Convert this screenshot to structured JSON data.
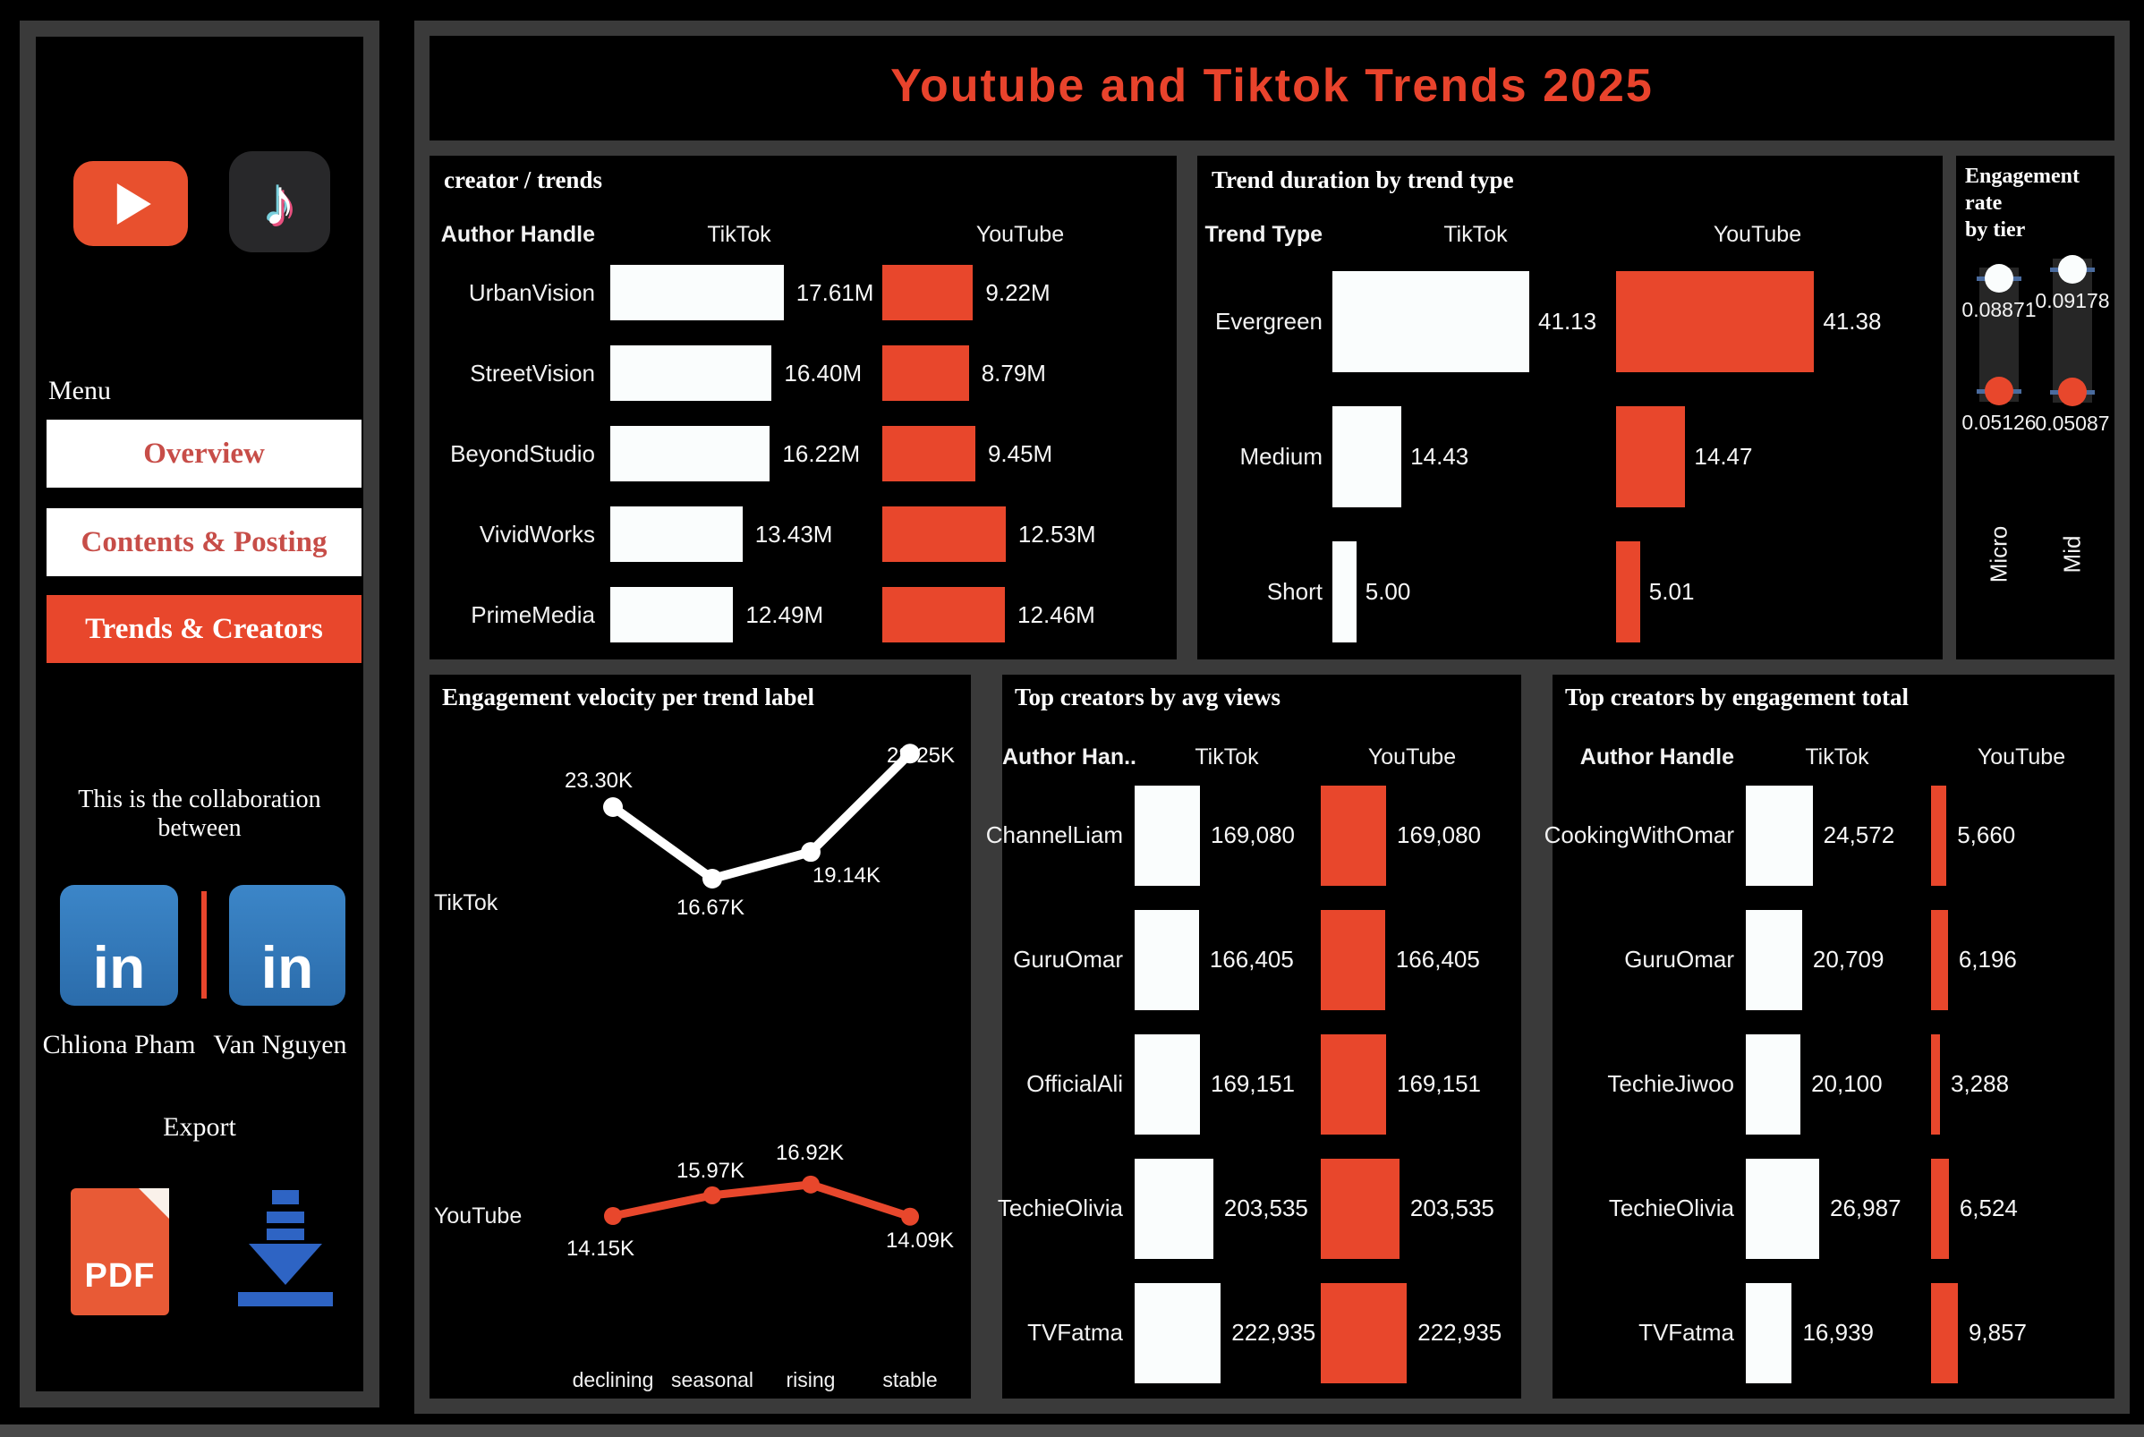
{
  "app": {
    "title": "Youtube and Tiktok Trends 2025"
  },
  "colors": {
    "accent_red": "#e8472c",
    "bar_white": "#fafdfd",
    "title_red": "#e8432c",
    "nav_text_red": "#c74d48",
    "linkedin_blue": "#2f76b9",
    "download_blue": "#2e64c4",
    "pdf_orange": "#e85a36",
    "frame_gray": "#3a3a3a",
    "tick_blue": "#4a6b9e",
    "track_gray": "#262626"
  },
  "sidebar": {
    "menu_label": "Menu",
    "nav": [
      {
        "label": "Overview",
        "active": false
      },
      {
        "label": "Contents & Posting",
        "active": false
      },
      {
        "label": "Trends & Creators",
        "active": true
      }
    ],
    "collab_text": "This is the collaboration between",
    "people": [
      "Chliona Pham",
      "Van Nguyen"
    ],
    "export_label": "Export",
    "icons": {
      "youtube": "youtube-icon",
      "tiktok": "tiktok-icon",
      "tiktok_glyph": "♪",
      "linkedin": "linkedin-icon",
      "linkedin_text": "in",
      "pdf": "pdf-file-icon",
      "pdf_text": "PDF",
      "download": "download-icon"
    }
  },
  "chart_data": [
    {
      "id": "creator_trends",
      "type": "bar",
      "title": "creator / trends",
      "columns": [
        "Author Handle",
        "TikTok",
        "YouTube"
      ],
      "value_unit": "M",
      "rows": [
        {
          "label": "UrbanVision",
          "tiktok": 17.61,
          "tiktok_label": "17.61M",
          "youtube": 9.22,
          "youtube_label": "9.22M"
        },
        {
          "label": "StreetVision",
          "tiktok": 16.4,
          "tiktok_label": "16.40M",
          "youtube": 8.79,
          "youtube_label": "8.79M"
        },
        {
          "label": "BeyondStudio",
          "tiktok": 16.22,
          "tiktok_label": "16.22M",
          "youtube": 9.45,
          "youtube_label": "9.45M"
        },
        {
          "label": "VividWorks",
          "tiktok": 13.43,
          "tiktok_label": "13.43M",
          "youtube": 12.53,
          "youtube_label": "12.53M"
        },
        {
          "label": "PrimeMedia",
          "tiktok": 12.49,
          "tiktok_label": "12.49M",
          "youtube": 12.46,
          "youtube_label": "12.46M"
        }
      ]
    },
    {
      "id": "trend_duration",
      "type": "bar",
      "title": "Trend duration by trend type",
      "columns": [
        "Trend Type",
        "TikTok",
        "YouTube"
      ],
      "rows": [
        {
          "label": "Evergreen",
          "tiktok": 41.13,
          "tiktok_label": "41.13",
          "youtube": 41.38,
          "youtube_label": "41.38"
        },
        {
          "label": "Medium",
          "tiktok": 14.43,
          "tiktok_label": "14.43",
          "youtube": 14.47,
          "youtube_label": "14.47"
        },
        {
          "label": "Short",
          "tiktok": 5.0,
          "tiktok_label": "5.00",
          "youtube": 5.01,
          "youtube_label": "5.01"
        }
      ]
    },
    {
      "id": "engagement_rate_by_tier",
      "type": "dumbbell",
      "title": "Engagement rate by tier",
      "title_lines": [
        "Engagement rate",
        "by tier"
      ],
      "categories": [
        "Micro",
        "Mid"
      ],
      "series": [
        {
          "name": "high",
          "color": "#fafdfd",
          "values": [
            0.08871,
            0.09178
          ],
          "labels": [
            "0.08871",
            "0.09178"
          ]
        },
        {
          "name": "low",
          "color": "#e8472c",
          "values": [
            0.05126,
            0.05087
          ],
          "labels": [
            "0.05126",
            "0.05087"
          ]
        }
      ]
    },
    {
      "id": "engagement_velocity",
      "type": "line",
      "title": "Engagement velocity per trend label",
      "x": [
        "declining",
        "seasonal",
        "rising",
        "stable"
      ],
      "series": [
        {
          "name": "TikTok",
          "color": "#ffffff",
          "values": [
            23300,
            16670,
            19140,
            28250
          ],
          "labels": [
            "23.30K",
            "16.67K",
            "19.14K",
            "28.25K"
          ]
        },
        {
          "name": "YouTube",
          "color": "#e8472c",
          "values": [
            14150,
            15970,
            16920,
            14090
          ],
          "labels": [
            "14.15K",
            "15.97K",
            "16.92K",
            "14.09K"
          ]
        }
      ]
    },
    {
      "id": "top_avg_views",
      "type": "bar",
      "title": "Top creators by avg views",
      "columns": [
        "Author Han..",
        "TikTok",
        "YouTube"
      ],
      "rows": [
        {
          "label": "ChannelLiam",
          "tiktok": 169080,
          "tiktok_label": "169,080",
          "youtube": 169080,
          "youtube_label": "169,080"
        },
        {
          "label": "GuruOmar",
          "tiktok": 166405,
          "tiktok_label": "166,405",
          "youtube": 166405,
          "youtube_label": "166,405"
        },
        {
          "label": "OfficialAli",
          "tiktok": 169151,
          "tiktok_label": "169,151",
          "youtube": 169151,
          "youtube_label": "169,151"
        },
        {
          "label": "TechieOlivia",
          "tiktok": 203535,
          "tiktok_label": "203,535",
          "youtube": 203535,
          "youtube_label": "203,535"
        },
        {
          "label": "TVFatma",
          "tiktok": 222935,
          "tiktok_label": "222,935",
          "youtube": 222935,
          "youtube_label": "222,935"
        }
      ]
    },
    {
      "id": "top_engagement_total",
      "type": "bar",
      "title": "Top creators by engagement total",
      "columns": [
        "Author Handle",
        "TikTok",
        "YouTube"
      ],
      "rows": [
        {
          "label": "CookingWithOmar",
          "tiktok": 24572,
          "tiktok_label": "24,572",
          "youtube": 5660,
          "youtube_label": "5,660"
        },
        {
          "label": "GuruOmar",
          "tiktok": 20709,
          "tiktok_label": "20,709",
          "youtube": 6196,
          "youtube_label": "6,196"
        },
        {
          "label": "TechieJiwoo",
          "tiktok": 20100,
          "tiktok_label": "20,100",
          "youtube": 3288,
          "youtube_label": "3,288"
        },
        {
          "label": "TechieOlivia",
          "tiktok": 26987,
          "tiktok_label": "26,987",
          "youtube": 6524,
          "youtube_label": "6,524"
        },
        {
          "label": "TVFatma",
          "tiktok": 16939,
          "tiktok_label": "16,939",
          "youtube": 9857,
          "youtube_label": "9,857"
        }
      ]
    }
  ]
}
